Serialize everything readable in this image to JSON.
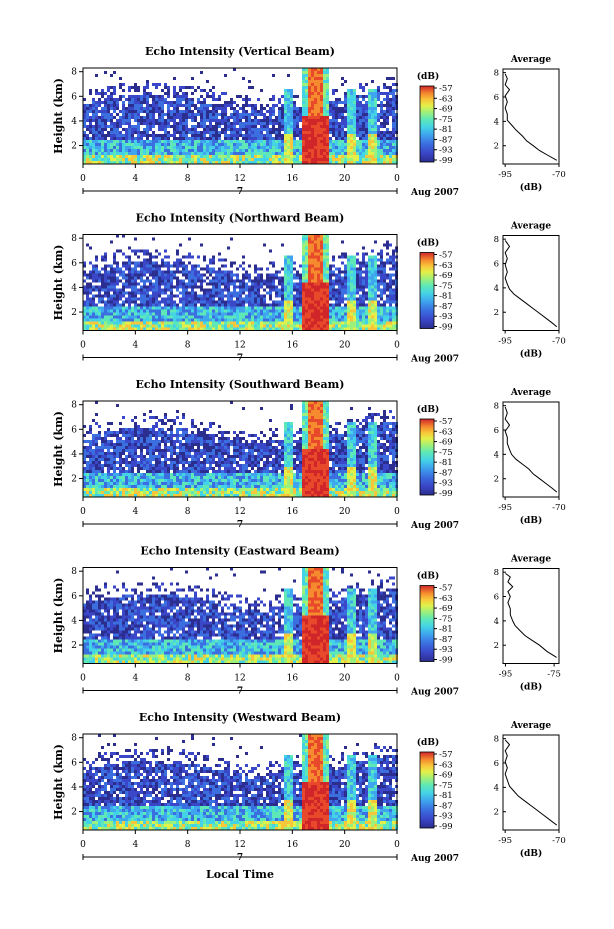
{
  "figure": {
    "shared_xlabel": "Local Time",
    "day_label": "7",
    "date_label": "Aug 2007",
    "colorbar_unit": "(dB)",
    "colorbar_ticks": [
      "-57",
      "-63",
      "-69",
      "-75",
      "-81",
      "-87",
      "-93",
      "-99"
    ],
    "profile_title": "Average",
    "profile_xlabel": "(dB)",
    "height_label": "Height (km)",
    "palette": [
      "#2b2d8f",
      "#3a47c8",
      "#3b6fe0",
      "#3fa5ee",
      "#44d3e6",
      "#5ee8b8",
      "#9cf07c",
      "#e3f04a",
      "#f8c63a",
      "#f58a2e",
      "#e8492a",
      "#d0262a"
    ]
  },
  "chart_data": [
    {
      "type": "heatmap",
      "title": "Echo Intensity (Vertical Beam)",
      "xlabel": "Local Time",
      "ylabel": "Height (km)",
      "x_ticks": [
        "0",
        "4",
        "8",
        "12",
        "16",
        "20",
        "0"
      ],
      "x_range_hours": [
        0,
        24
      ],
      "y_ticks": [
        "8",
        "6",
        "4",
        "2"
      ],
      "y_range_km": [
        0.5,
        8.3
      ],
      "colorbar_range_db": [
        -99,
        -57
      ],
      "rain_bands_hours": [
        16.7,
        18.7,
        20.3,
        22.0
      ],
      "profile": {
        "title": "Average",
        "xlabel": "(dB)",
        "x_ticks": [
          "-95",
          "-70"
        ],
        "x_range_db": [
          -96,
          -70
        ],
        "y_ticks": [
          "8",
          "6",
          "4",
          "2"
        ],
        "points": [
          [
            -95,
            7.9
          ],
          [
            -94,
            7.5
          ],
          [
            -95,
            7.0
          ],
          [
            -93,
            6.6
          ],
          [
            -95,
            6.1
          ],
          [
            -94,
            5.6
          ],
          [
            -95,
            5.1
          ],
          [
            -94,
            4.6
          ],
          [
            -94,
            4.1
          ],
          [
            -92,
            3.7
          ],
          [
            -90,
            3.3
          ],
          [
            -87,
            2.8
          ],
          [
            -85,
            2.4
          ],
          [
            -82,
            2.0
          ],
          [
            -79,
            1.6
          ],
          [
            -75,
            1.2
          ],
          [
            -71,
            0.8
          ]
        ]
      }
    },
    {
      "type": "heatmap",
      "title": "Echo Intensity (Northward Beam)",
      "xlabel": "Local Time",
      "ylabel": "Height (km)",
      "x_ticks": [
        "0",
        "4",
        "8",
        "12",
        "16",
        "20",
        "0"
      ],
      "x_range_hours": [
        0,
        24
      ],
      "y_ticks": [
        "8",
        "6",
        "4",
        "2"
      ],
      "y_range_km": [
        0.5,
        8.3
      ],
      "colorbar_range_db": [
        -99,
        -57
      ],
      "rain_bands_hours": [
        16.7,
        18.7,
        20.3,
        22.0
      ],
      "profile": {
        "title": "Average",
        "xlabel": "(dB)",
        "x_ticks": [
          "-95",
          "-70"
        ],
        "x_range_db": [
          -96,
          -70
        ],
        "y_ticks": [
          "8",
          "6",
          "4",
          "2"
        ],
        "points": [
          [
            -95,
            7.9
          ],
          [
            -93,
            7.4
          ],
          [
            -95,
            6.9
          ],
          [
            -94,
            6.4
          ],
          [
            -95,
            5.9
          ],
          [
            -94,
            5.3
          ],
          [
            -95,
            4.8
          ],
          [
            -94,
            4.3
          ],
          [
            -93,
            3.9
          ],
          [
            -91,
            3.5
          ],
          [
            -88,
            3.1
          ],
          [
            -85,
            2.7
          ],
          [
            -82,
            2.3
          ],
          [
            -79,
            1.9
          ],
          [
            -76,
            1.5
          ],
          [
            -73,
            1.1
          ],
          [
            -71,
            0.8
          ]
        ]
      }
    },
    {
      "type": "heatmap",
      "title": "Echo Intensity (Southward Beam)",
      "xlabel": "Local Time",
      "ylabel": "Height (km)",
      "x_ticks": [
        "0",
        "4",
        "8",
        "12",
        "16",
        "20",
        "0"
      ],
      "x_range_hours": [
        0,
        24
      ],
      "y_ticks": [
        "8",
        "6",
        "4",
        "2"
      ],
      "y_range_km": [
        0.5,
        8.3
      ],
      "colorbar_range_db": [
        -99,
        -57
      ],
      "rain_bands_hours": [
        16.7,
        18.7,
        20.3,
        22.0
      ],
      "profile": {
        "title": "Average",
        "xlabel": "(dB)",
        "x_ticks": [
          "-95",
          "-70"
        ],
        "x_range_db": [
          -96,
          -70
        ],
        "y_ticks": [
          "8",
          "6",
          "4",
          "2"
        ],
        "points": [
          [
            -95,
            7.9
          ],
          [
            -94,
            7.4
          ],
          [
            -95,
            6.9
          ],
          [
            -93,
            6.4
          ],
          [
            -95,
            5.9
          ],
          [
            -94,
            5.4
          ],
          [
            -94,
            4.9
          ],
          [
            -93,
            4.4
          ],
          [
            -92,
            4.0
          ],
          [
            -90,
            3.6
          ],
          [
            -87,
            3.2
          ],
          [
            -84,
            2.8
          ],
          [
            -82,
            2.4
          ],
          [
            -79,
            2.0
          ],
          [
            -76,
            1.6
          ],
          [
            -73,
            1.2
          ],
          [
            -71,
            0.9
          ]
        ]
      }
    },
    {
      "type": "heatmap",
      "title": "Echo Intensity (Eastward Beam)",
      "xlabel": "Local Time",
      "ylabel": "Height (km)",
      "x_ticks": [
        "0",
        "4",
        "8",
        "12",
        "16",
        "20",
        "0"
      ],
      "x_range_hours": [
        0,
        24
      ],
      "y_ticks": [
        "8",
        "6",
        "4",
        "2"
      ],
      "y_range_km": [
        0.5,
        8.3
      ],
      "colorbar_range_db": [
        -99,
        -57
      ],
      "rain_bands_hours": [
        16.7,
        18.7,
        20.3,
        22.0
      ],
      "profile": {
        "title": "Average",
        "xlabel": "(dB)",
        "x_ticks": [
          "-95",
          "-75"
        ],
        "x_range_db": [
          -96,
          -73
        ],
        "y_ticks": [
          "8",
          "6",
          "4",
          "2"
        ],
        "points": [
          [
            -95,
            7.9
          ],
          [
            -93,
            7.6
          ],
          [
            -94,
            7.2
          ],
          [
            -92,
            6.8
          ],
          [
            -94,
            6.4
          ],
          [
            -93,
            6.0
          ],
          [
            -94,
            5.5
          ],
          [
            -93,
            5.0
          ],
          [
            -93,
            4.5
          ],
          [
            -92,
            4.0
          ],
          [
            -91,
            3.6
          ],
          [
            -89,
            3.2
          ],
          [
            -87,
            2.8
          ],
          [
            -84,
            2.4
          ],
          [
            -81,
            2.0
          ],
          [
            -78,
            1.5
          ],
          [
            -74,
            1.0
          ]
        ]
      }
    },
    {
      "type": "heatmap",
      "title": "Echo Intensity (Westward Beam)",
      "xlabel": "Local Time",
      "ylabel": "Height (km)",
      "x_ticks": [
        "0",
        "4",
        "8",
        "12",
        "16",
        "20",
        "0"
      ],
      "x_range_hours": [
        0,
        24
      ],
      "y_ticks": [
        "8",
        "6",
        "4",
        "2"
      ],
      "y_range_km": [
        0.5,
        8.3
      ],
      "colorbar_range_db": [
        -99,
        -57
      ],
      "rain_bands_hours": [
        16.7,
        18.7,
        20.3,
        22.0
      ],
      "profile": {
        "title": "Average",
        "xlabel": "(dB)",
        "x_ticks": [
          "-95",
          "-70"
        ],
        "x_range_db": [
          -96,
          -70
        ],
        "y_ticks": [
          "8",
          "6",
          "4",
          "2"
        ],
        "points": [
          [
            -95,
            7.9
          ],
          [
            -93,
            7.5
          ],
          [
            -95,
            7.0
          ],
          [
            -94,
            6.6
          ],
          [
            -95,
            6.1
          ],
          [
            -94,
            5.6
          ],
          [
            -95,
            5.1
          ],
          [
            -94,
            4.6
          ],
          [
            -93,
            4.1
          ],
          [
            -91,
            3.7
          ],
          [
            -89,
            3.3
          ],
          [
            -86,
            2.9
          ],
          [
            -83,
            2.5
          ],
          [
            -80,
            2.1
          ],
          [
            -77,
            1.7
          ],
          [
            -74,
            1.3
          ],
          [
            -71,
            0.9
          ]
        ]
      }
    }
  ]
}
